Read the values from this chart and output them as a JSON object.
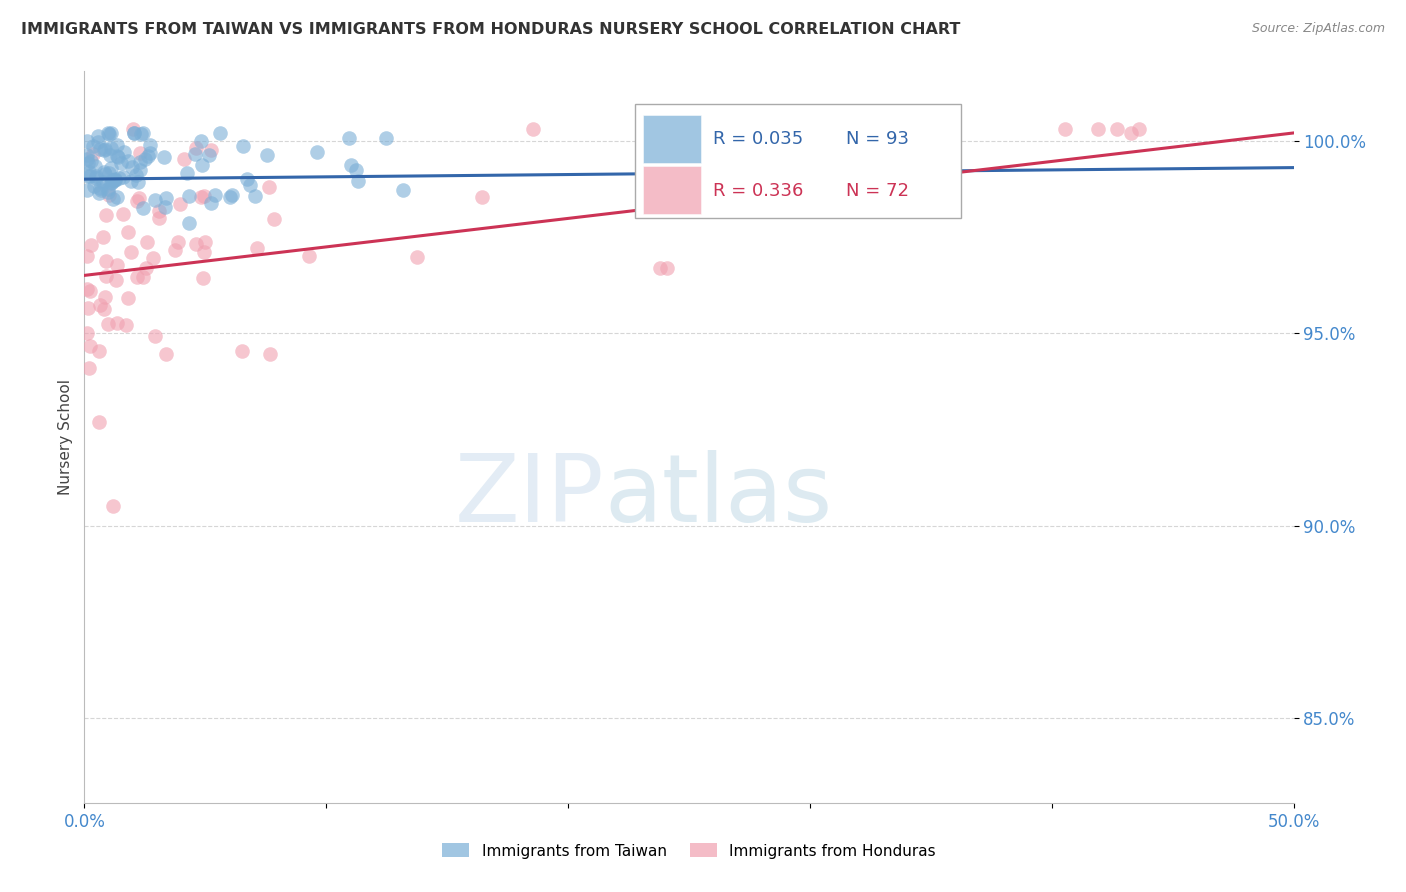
{
  "title": "IMMIGRANTS FROM TAIWAN VS IMMIGRANTS FROM HONDURAS NURSERY SCHOOL CORRELATION CHART",
  "source": "Source: ZipAtlas.com",
  "ylabel": "Nursery School",
  "y_ticks": [
    0.85,
    0.9,
    0.95,
    1.0
  ],
  "y_tick_labels": [
    "85.0%",
    "90.0%",
    "95.0%",
    "100.0%"
  ],
  "x_range": [
    0.0,
    0.5
  ],
  "y_range": [
    0.828,
    1.018
  ],
  "legend_taiwan": "Immigrants from Taiwan",
  "legend_honduras": "Immigrants from Honduras",
  "R_taiwan": 0.035,
  "N_taiwan": 93,
  "R_honduras": 0.336,
  "N_honduras": 72,
  "taiwan_color": "#7aaed6",
  "honduras_color": "#f0a0b0",
  "taiwan_line_color": "#3366aa",
  "honduras_line_color": "#cc3355",
  "background_color": "#ffffff",
  "grid_color": "#cccccc",
  "axis_label_color": "#4488cc",
  "title_color": "#333333",
  "source_color": "#888888"
}
